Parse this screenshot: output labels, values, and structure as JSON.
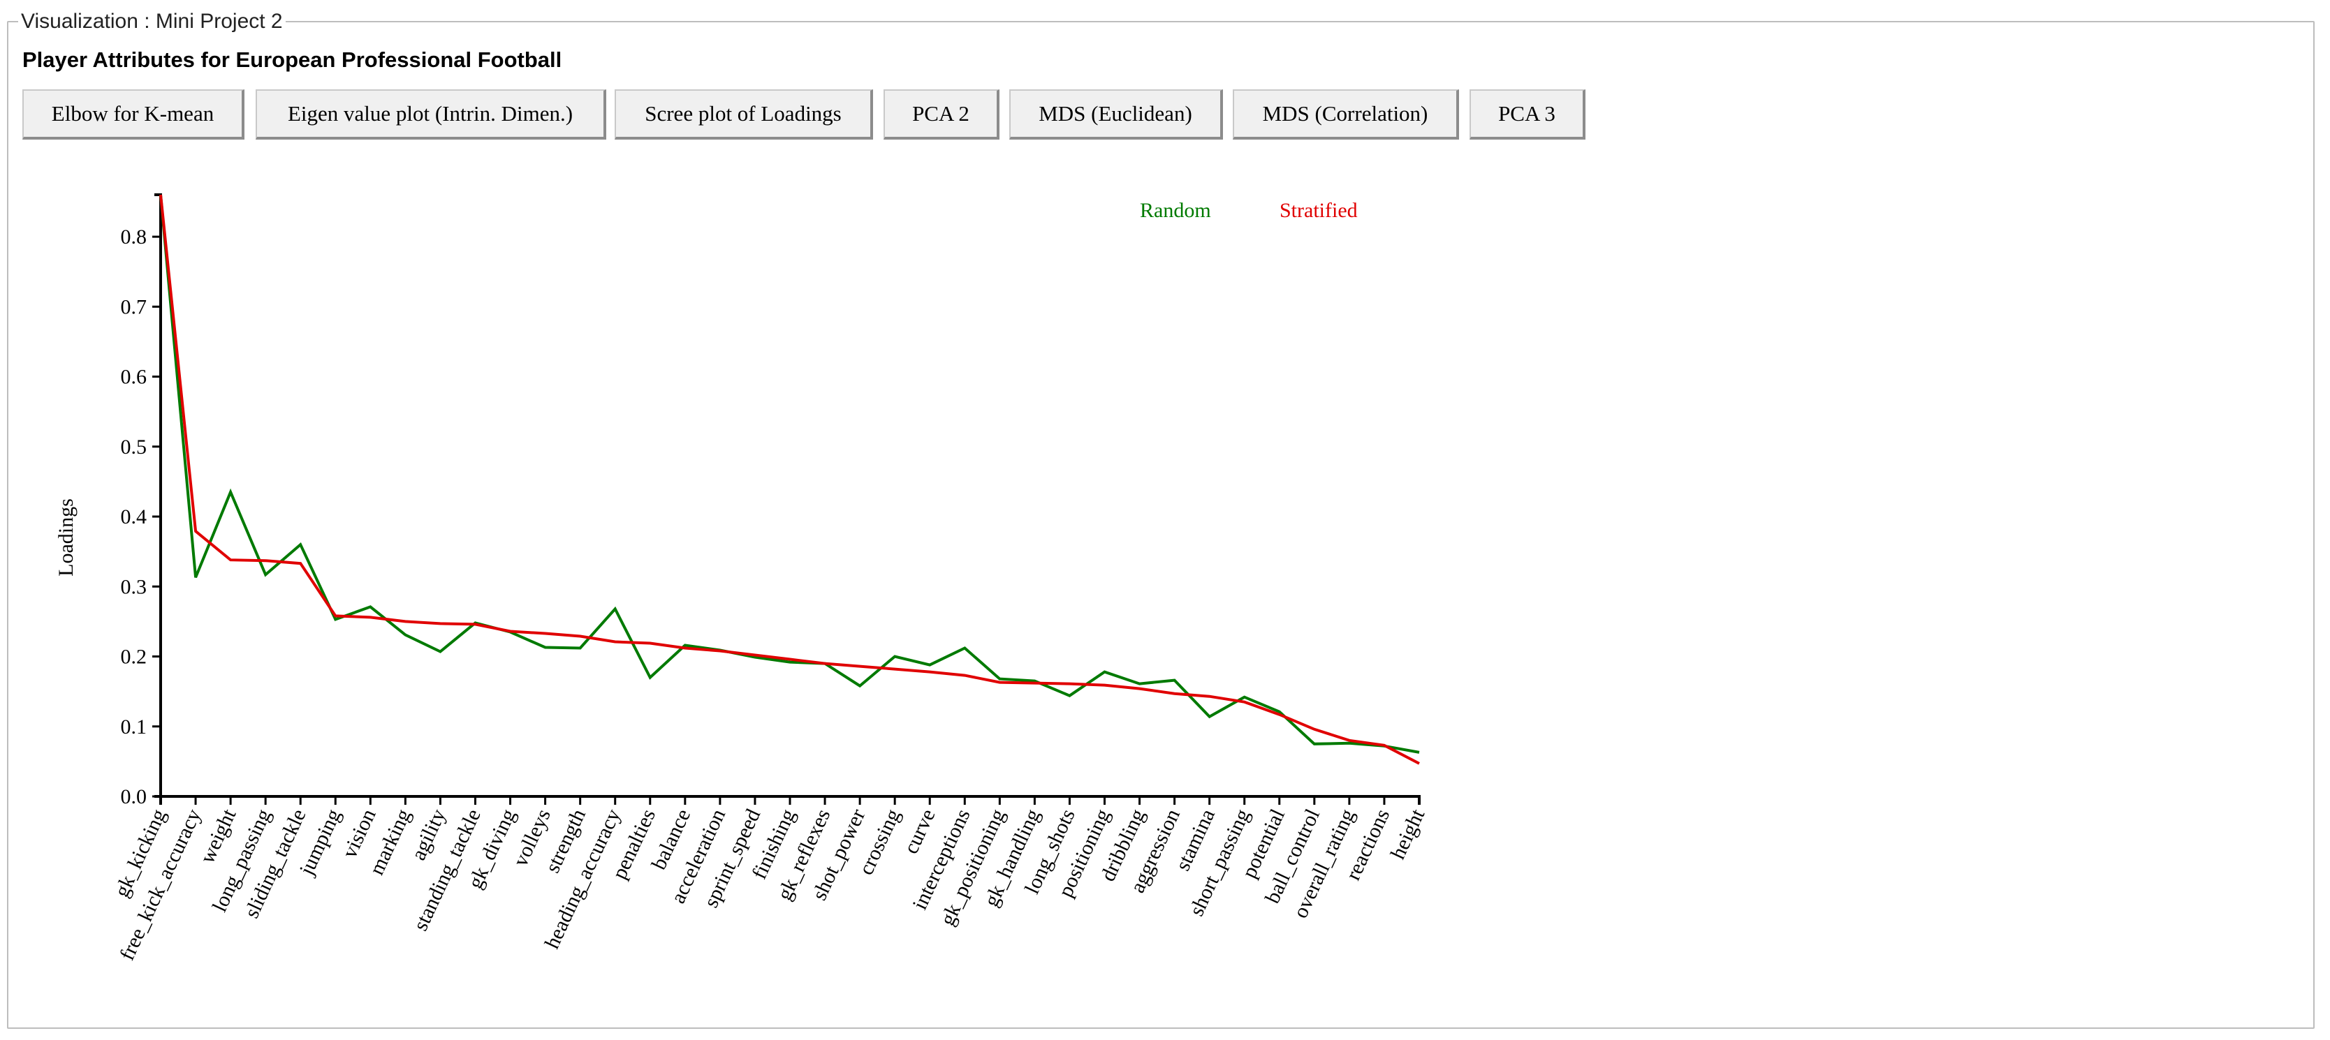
{
  "frame": {
    "legend": "Visualization : Mini Project 2"
  },
  "heading": "Player Attributes for European Professional Football",
  "toolbar": {
    "buttons": [
      "Elbow for K-mean",
      "Eigen value plot (Intrin. Dimen.)",
      "Scree plot of Loadings",
      "PCA 2",
      "MDS (Euclidean)",
      "MDS (Correlation)",
      "PCA 3"
    ]
  },
  "chart_data": {
    "type": "line",
    "title": "",
    "xlabel": "",
    "ylabel": "Loadings",
    "ylim": [
      0,
      0.86
    ],
    "yticks": [
      0.0,
      0.1,
      0.2,
      0.3,
      0.4,
      0.5,
      0.6,
      0.7,
      0.8
    ],
    "grid": false,
    "legend_position": "top-right",
    "categories": [
      "gk_kicking",
      "free_kick_accuracy",
      "weight",
      "long_passing",
      "sliding_tackle",
      "jumping",
      "vision",
      "marking",
      "agility",
      "standing_tackle",
      "gk_diving",
      "volleys",
      "strength",
      "heading_accuracy",
      "penalties",
      "balance",
      "acceleration",
      "sprint_speed",
      "finishing",
      "gk_reflexes",
      "shot_power",
      "crossing",
      "curve",
      "interceptions",
      "gk_positioning",
      "gk_handling",
      "long_shots",
      "positioning",
      "dribbling",
      "aggression",
      "stamina",
      "short_passing",
      "potential",
      "ball_control",
      "overall_rating",
      "reactions",
      "height"
    ],
    "series": [
      {
        "name": "Random",
        "color": "#007a00",
        "values": [
          0.86,
          0.313,
          0.435,
          0.317,
          0.36,
          0.253,
          0.271,
          0.231,
          0.207,
          0.248,
          0.235,
          0.213,
          0.212,
          0.268,
          0.17,
          0.216,
          0.209,
          0.199,
          0.192,
          0.19,
          0.158,
          0.2,
          0.188,
          0.212,
          0.168,
          0.165,
          0.144,
          0.178,
          0.161,
          0.166,
          0.114,
          0.142,
          0.121,
          0.075,
          0.076,
          0.072,
          0.063
        ]
      },
      {
        "name": "Stratified",
        "color": "#e00000",
        "values": [
          0.86,
          0.379,
          0.338,
          0.337,
          0.333,
          0.258,
          0.256,
          0.25,
          0.247,
          0.246,
          0.236,
          0.233,
          0.229,
          0.221,
          0.219,
          0.212,
          0.208,
          0.202,
          0.196,
          0.19,
          0.186,
          0.182,
          0.178,
          0.173,
          0.163,
          0.162,
          0.161,
          0.159,
          0.154,
          0.147,
          0.143,
          0.135,
          0.117,
          0.096,
          0.08,
          0.073,
          0.047
        ]
      }
    ]
  }
}
